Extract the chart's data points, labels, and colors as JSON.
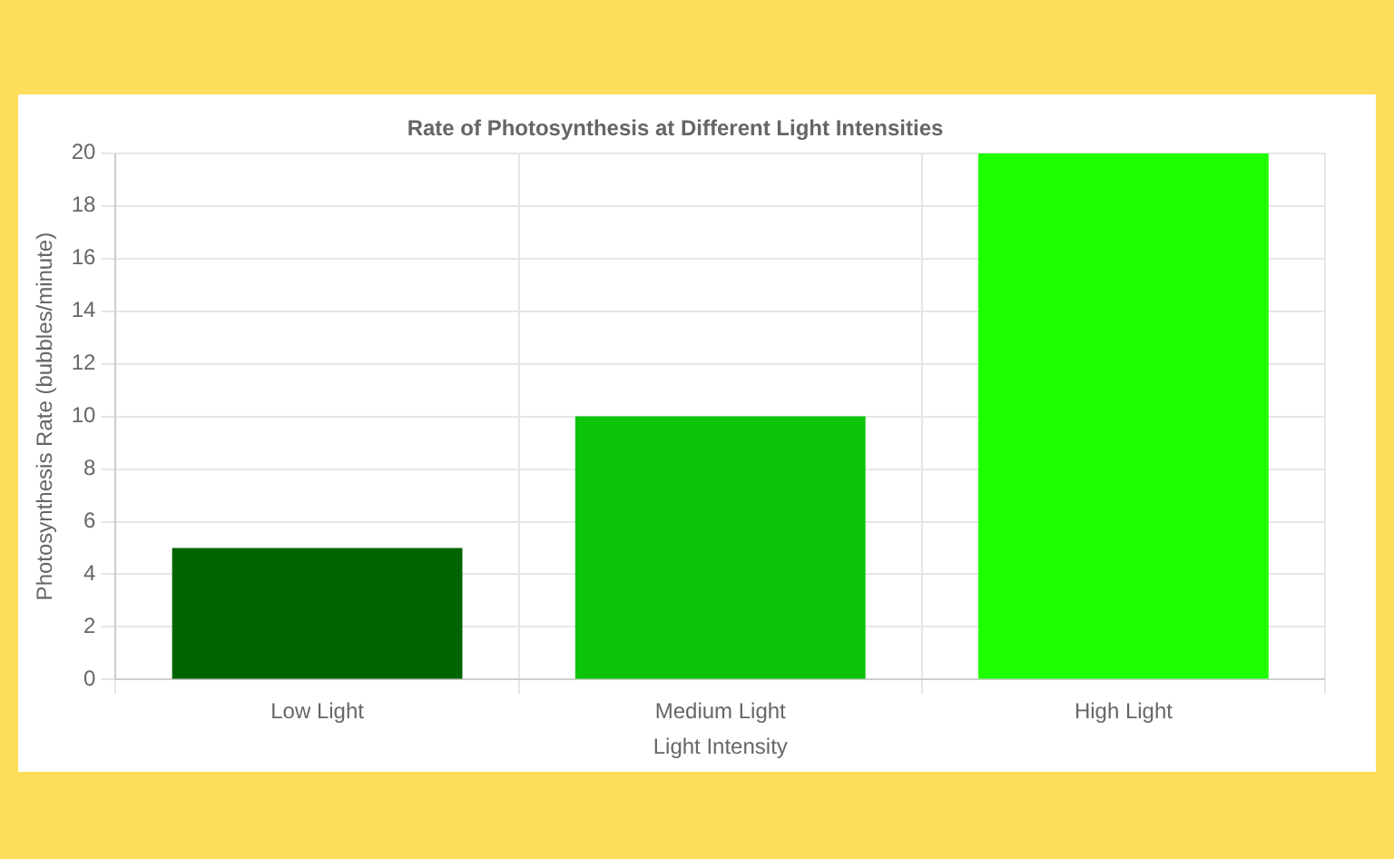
{
  "chart_data": {
    "type": "bar",
    "title": "Rate of Photosynthesis at Different Light Intensities",
    "xlabel": "Light Intensity",
    "ylabel": "Photosynthesis Rate (bubbles/minute)",
    "categories": [
      "Low Light",
      "Medium Light",
      "High Light"
    ],
    "values": [
      5,
      10,
      20
    ],
    "colors": [
      "#006400",
      "#0cc40c",
      "#1eff00"
    ],
    "ylim": [
      0,
      20
    ],
    "yticks": [
      0,
      2,
      4,
      6,
      8,
      10,
      12,
      14,
      16,
      18,
      20
    ],
    "grid": true,
    "legend": false
  }
}
